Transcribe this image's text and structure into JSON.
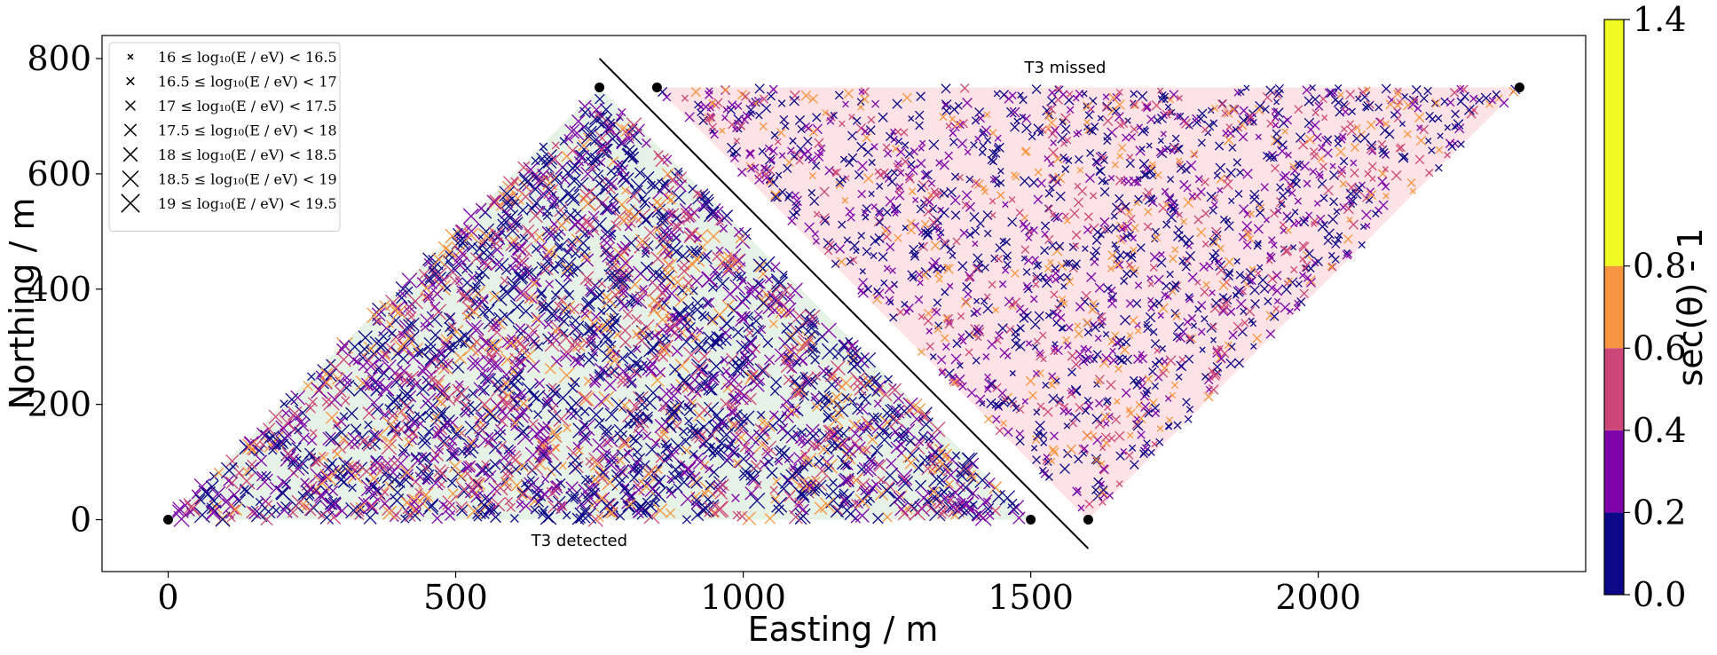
{
  "chart_data": {
    "type": "scatter",
    "xlabel": "Easting / m",
    "ylabel": "Northing / m",
    "xlim": [
      -115,
      2465
    ],
    "ylim": [
      -90,
      840
    ],
    "xticks": [
      {
        "value": 0,
        "label": "0"
      },
      {
        "value": 500,
        "label": "500"
      },
      {
        "value": 1000,
        "label": "1000"
      },
      {
        "value": 1500,
        "label": "1500"
      },
      {
        "value": 2000,
        "label": "2000"
      }
    ],
    "yticks": [
      {
        "value": 0,
        "label": "0"
      },
      {
        "value": 200,
        "label": "200"
      },
      {
        "value": 400,
        "label": "400"
      },
      {
        "value": 600,
        "label": "600"
      },
      {
        "value": 800,
        "label": "800"
      }
    ],
    "regions": [
      {
        "name": "detected",
        "vertices": [
          [
            0,
            0
          ],
          [
            750,
            750
          ],
          [
            1500,
            0
          ]
        ],
        "fill": "#e6f2e6",
        "label": "T3 detected",
        "label_at": [
          715,
          -45
        ]
      },
      {
        "name": "missed",
        "vertices": [
          [
            850,
            750
          ],
          [
            2350,
            750
          ],
          [
            1600,
            0
          ]
        ],
        "fill": "#fde3e5",
        "label": "T3 missed",
        "label_at": [
          1560,
          775
        ]
      }
    ],
    "divider_line": [
      [
        750,
        800
      ],
      [
        1600,
        -50
      ]
    ],
    "stations": [
      [
        0,
        0
      ],
      [
        750,
        750
      ],
      [
        1500,
        0
      ],
      [
        850,
        750
      ],
      [
        2350,
        750
      ],
      [
        1600,
        0
      ]
    ],
    "legend": {
      "position": "upper-left",
      "entries": [
        "16 ≤ log₁₀(E / eV) < 16.5",
        "16.5 ≤ log₁₀(E / eV) < 17",
        "17 ≤ log₁₀(E / eV) < 17.5",
        "17.5 ≤ log₁₀(E / eV) < 18",
        "18 ≤ log₁₀(E / eV) < 18.5",
        "18.5 ≤ log₁₀(E / eV) < 19",
        "19 ≤ log₁₀(E / eV) < 19.5"
      ]
    },
    "colorbar": {
      "label": "sec(θ) - 1",
      "range": [
        0.0,
        1.4
      ],
      "ticks": [
        "0.0",
        "0.2",
        "0.4",
        "0.6",
        "0.8",
        "1.4"
      ],
      "bands": [
        {
          "from": 0.0,
          "to": 0.2,
          "color": "#0d0887"
        },
        {
          "from": 0.2,
          "to": 0.4,
          "color": "#7e03a8"
        },
        {
          "from": 0.4,
          "to": 0.6,
          "color": "#cc4778"
        },
        {
          "from": 0.6,
          "to": 0.8,
          "color": "#f89540"
        },
        {
          "from": 0.8,
          "to": 1.4,
          "color": "#f0f921"
        }
      ]
    },
    "detected_points": 2400,
    "missed_points": 1700
  }
}
